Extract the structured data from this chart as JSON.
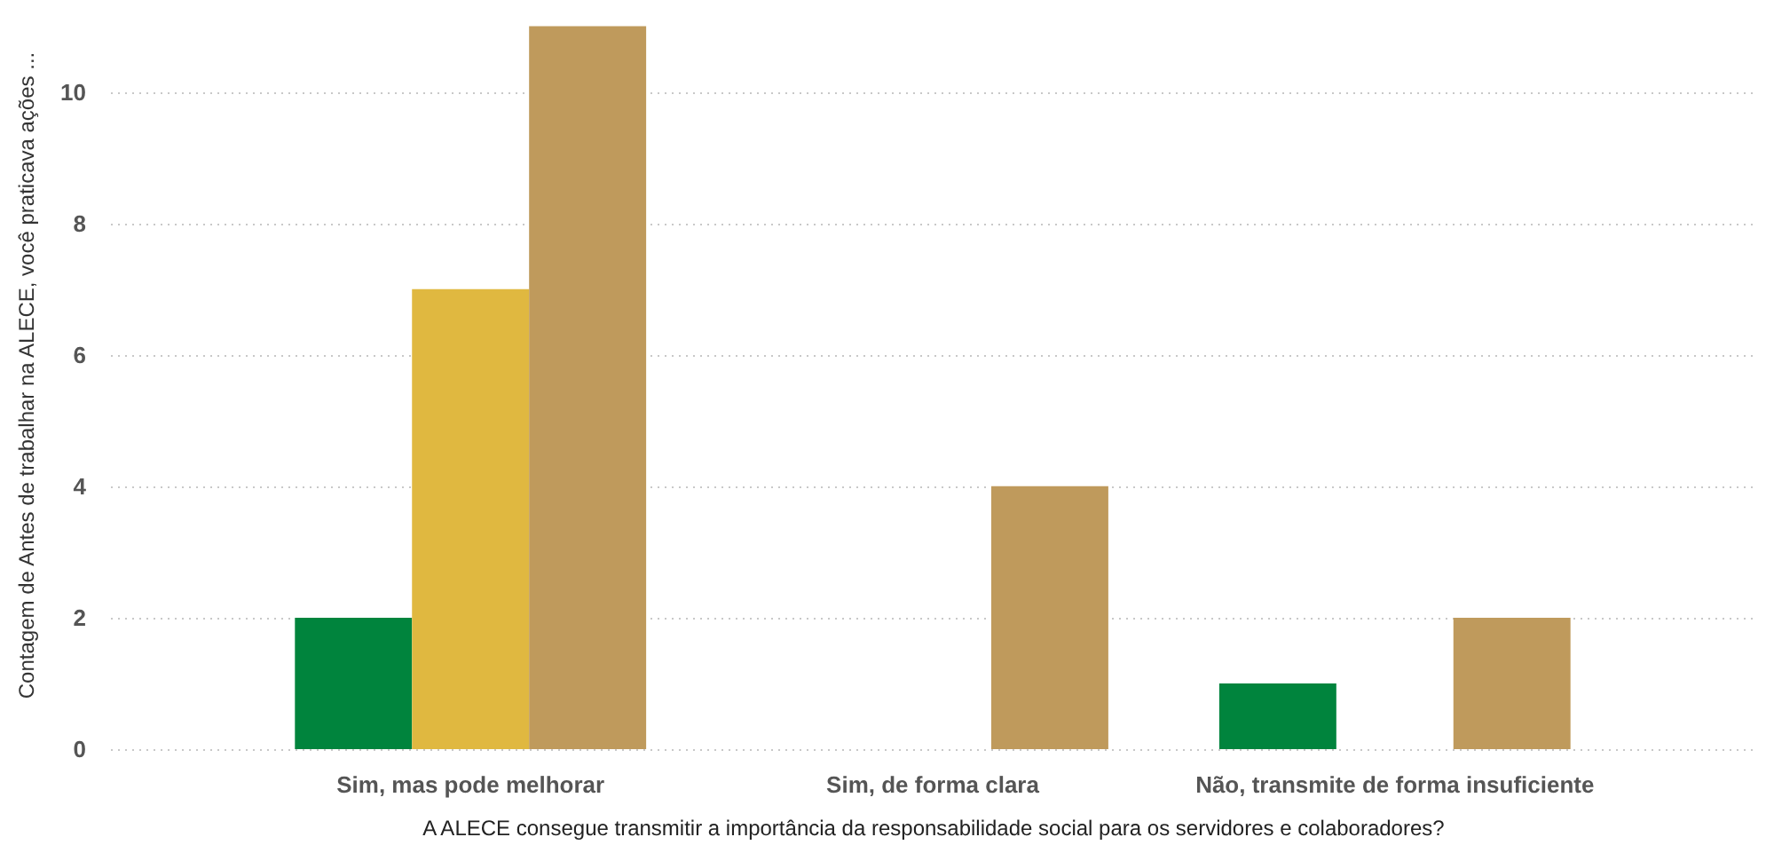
{
  "chart_data": {
    "type": "bar",
    "xlabel": "A ALECE consegue transmitir a importância da responsabilidade social para os servidores e colaboradores?",
    "ylabel": "Contagem de Antes de trabalhar na ALECE, você praticava ações ...",
    "categories": [
      "Sim, mas pode melhorar",
      "Sim, de forma clara",
      "Não, transmite de forma insuficiente"
    ],
    "series": [
      {
        "color": "#00843d",
        "values": [
          2,
          null,
          1
        ]
      },
      {
        "color": "#e0b840",
        "values": [
          7,
          null,
          null
        ]
      },
      {
        "color": "#bf9a5c",
        "values": [
          11,
          4,
          2
        ]
      }
    ],
    "ylim": [
      0,
      11.4
    ],
    "yticks": [
      0,
      2,
      4,
      6,
      8,
      10
    ],
    "grid": "y",
    "legend": false
  }
}
